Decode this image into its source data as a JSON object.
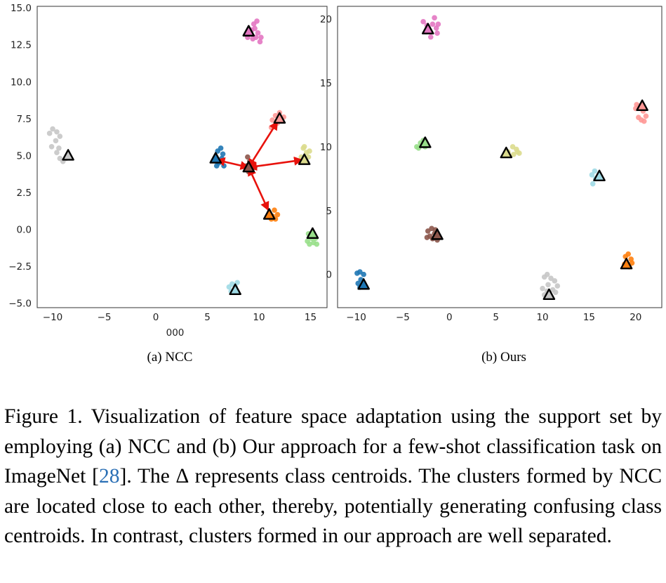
{
  "chart_data": [
    {
      "type": "scatter",
      "title": "",
      "xlabel": "000",
      "ylabel": "",
      "xlim": [
        -11.5,
        16.6
      ],
      "ylim": [
        -5.3,
        15.1
      ],
      "xticks": [
        -10,
        -5,
        0,
        5,
        10,
        15
      ],
      "xtick_labels": [
        "−10",
        "−5",
        "0",
        "5",
        "10",
        "15"
      ],
      "yticks": [
        -5,
        -2.5,
        0,
        2.5,
        5,
        7.5,
        10,
        12.5,
        15
      ],
      "ytick_labels": [
        "−5.0",
        "−2.5",
        "0.0",
        "2.5",
        "5.0",
        "7.5",
        "10.0",
        "12.5",
        "15.0"
      ],
      "grid": false,
      "caption_label": "(a) NCC",
      "clusters": [
        {
          "color": "#e377c2",
          "points": [
            [
              9.0,
              13.2
            ],
            [
              9.3,
              13.5
            ],
            [
              9.5,
              13.9
            ],
            [
              9.8,
              14.1
            ],
            [
              9.6,
              13.6
            ],
            [
              9.9,
              13.3
            ],
            [
              10.2,
              13.0
            ],
            [
              10.1,
              12.7
            ],
            [
              9.4,
              12.9
            ],
            [
              8.9,
              13.0
            ],
            [
              9.7,
              13.0
            ]
          ],
          "centroid": [
            9.0,
            13.4
          ]
        },
        {
          "color": "#c7c7c7",
          "points": [
            [
              -10.3,
              6.5
            ],
            [
              -10.0,
              6.8
            ],
            [
              -9.6,
              6.6
            ],
            [
              -9.3,
              6.3
            ],
            [
              -9.7,
              6.0
            ],
            [
              -10.1,
              5.6
            ],
            [
              -9.6,
              5.2
            ],
            [
              -9.3,
              4.8
            ],
            [
              -9.0,
              4.6
            ],
            [
              -8.7,
              4.8
            ],
            [
              -9.4,
              5.5
            ]
          ],
          "centroid": [
            -8.5,
            5.0
          ]
        },
        {
          "color": "#1f77b4",
          "points": [
            [
              5.8,
              4.9
            ],
            [
              6.0,
              5.3
            ],
            [
              6.3,
              5.5
            ],
            [
              6.4,
              4.8
            ],
            [
              6.1,
              4.5
            ],
            [
              6.6,
              4.3
            ],
            [
              5.9,
              4.3
            ],
            [
              6.5,
              5.1
            ]
          ],
          "centroid": [
            5.8,
            4.8
          ]
        },
        {
          "color": "#8c564b",
          "points": [
            [
              8.9,
              4.9
            ],
            [
              9.1,
              4.6
            ],
            [
              9.4,
              4.4
            ],
            [
              8.8,
              4.3
            ],
            [
              9.2,
              4.0
            ],
            [
              9.0,
              3.9
            ],
            [
              9.6,
              4.2
            ]
          ],
          "centroid": [
            9.0,
            4.2
          ]
        },
        {
          "color": "#ff9896",
          "points": [
            [
              11.3,
              7.4
            ],
            [
              11.6,
              7.7
            ],
            [
              12.0,
              7.9
            ],
            [
              12.2,
              7.5
            ],
            [
              11.8,
              7.2
            ],
            [
              11.5,
              7.0
            ],
            [
              11.2,
              6.9
            ],
            [
              12.4,
              7.6
            ]
          ],
          "centroid": [
            12.0,
            7.5
          ]
        },
        {
          "color": "#dbdb8d",
          "points": [
            [
              14.3,
              5.5
            ],
            [
              14.6,
              5.2
            ],
            [
              14.8,
              4.9
            ],
            [
              14.5,
              4.7
            ],
            [
              14.1,
              4.9
            ],
            [
              14.4,
              5.6
            ],
            [
              14.9,
              5.3
            ]
          ],
          "centroid": [
            14.4,
            4.7
          ]
        },
        {
          "color": "#ff7f0e",
          "points": [
            [
              11.0,
              1.1
            ],
            [
              11.3,
              0.9
            ],
            [
              11.6,
              0.7
            ],
            [
              11.8,
              1.0
            ],
            [
              11.5,
              1.3
            ],
            [
              11.2,
              0.7
            ]
          ],
          "centroid": [
            11.0,
            1.0
          ]
        },
        {
          "color": "#98df8a",
          "points": [
            [
              14.8,
              -0.3
            ],
            [
              15.1,
              -0.6
            ],
            [
              15.3,
              -0.9
            ],
            [
              14.9,
              -1.0
            ],
            [
              15.5,
              -0.6
            ],
            [
              14.7,
              -0.8
            ],
            [
              15.6,
              -1.0
            ]
          ],
          "centroid": [
            15.2,
            -0.3
          ]
        },
        {
          "color": "#9edae5",
          "points": [
            [
              7.1,
              -3.9
            ],
            [
              7.4,
              -3.7
            ],
            [
              7.7,
              -3.9
            ],
            [
              7.9,
              -3.6
            ],
            [
              7.3,
              -4.2
            ]
          ],
          "centroid": [
            7.7,
            -4.1
          ]
        }
      ],
      "arrows": [
        {
          "from": [
            9.0,
            4.2
          ],
          "to": [
            5.9,
            4.7
          ]
        },
        {
          "from": [
            9.0,
            4.2
          ],
          "to": [
            11.8,
            7.3
          ]
        },
        {
          "from": [
            9.0,
            4.2
          ],
          "to": [
            14.2,
            4.7
          ]
        },
        {
          "from": [
            9.0,
            4.2
          ],
          "to": [
            10.9,
            1.3
          ]
        }
      ]
    },
    {
      "type": "scatter",
      "title": "",
      "xlabel": "",
      "ylabel": "",
      "xlim": [
        -12.0,
        22.8
      ],
      "ylim": [
        -2.6,
        21.0
      ],
      "xticks": [
        -10,
        -5,
        0,
        5,
        10,
        15,
        20
      ],
      "xtick_labels": [
        "−10",
        "−5",
        "0",
        "5",
        "10",
        "15",
        "20"
      ],
      "yticks": [
        0,
        5,
        10,
        15,
        20
      ],
      "ytick_labels": [
        "0",
        "5",
        "10",
        "15",
        "20"
      ],
      "grid": false,
      "caption_label": "(b) Ours",
      "clusters": [
        {
          "color": "#e377c2",
          "points": [
            [
              -2.8,
              19.8
            ],
            [
              -2.4,
              19.5
            ],
            [
              -1.8,
              19.6
            ],
            [
              -1.4,
              19.3
            ],
            [
              -1.3,
              18.9
            ],
            [
              -2.0,
              18.6
            ],
            [
              -2.5,
              19.0
            ],
            [
              -1.6,
              20.1
            ],
            [
              -2.2,
              19.2
            ],
            [
              -1.2,
              19.6
            ]
          ],
          "centroid": [
            -2.3,
            19.2
          ]
        },
        {
          "color": "#ff9896",
          "points": [
            [
              20.0,
              13.0
            ],
            [
              20.4,
              13.2
            ],
            [
              20.8,
              12.8
            ],
            [
              21.1,
              12.4
            ],
            [
              20.6,
              12.1
            ],
            [
              20.9,
              12.0
            ],
            [
              20.3,
              12.3
            ],
            [
              20.1,
              13.3
            ]
          ],
          "centroid": [
            20.7,
            13.2
          ]
        },
        {
          "color": "#98df8a",
          "points": [
            [
              -3.5,
              10.0
            ],
            [
              -3.1,
              10.3
            ],
            [
              -2.8,
              10.5
            ],
            [
              -3.3,
              9.9
            ],
            [
              -2.6,
              10.0
            ]
          ],
          "centroid": [
            -2.6,
            10.3
          ]
        },
        {
          "color": "#dbdb8d",
          "points": [
            [
              6.3,
              9.6
            ],
            [
              6.8,
              10.0
            ],
            [
              7.2,
              9.8
            ],
            [
              7.5,
              9.5
            ],
            [
              6.9,
              9.4
            ],
            [
              7.3,
              9.6
            ]
          ],
          "centroid": [
            6.1,
            9.5
          ]
        },
        {
          "color": "#9edae5",
          "points": [
            [
              15.3,
              7.8
            ],
            [
              15.6,
              8.1
            ],
            [
              15.9,
              7.6
            ],
            [
              15.4,
              7.1
            ],
            [
              15.7,
              7.5
            ]
          ],
          "centroid": [
            16.1,
            7.7
          ]
        },
        {
          "color": "#8c564b",
          "points": [
            [
              -2.3,
              3.4
            ],
            [
              -1.9,
              3.6
            ],
            [
              -1.6,
              3.2
            ],
            [
              -1.8,
              2.8
            ],
            [
              -1.3,
              2.7
            ],
            [
              -2.1,
              3.0
            ],
            [
              -1.5,
              3.5
            ],
            [
              -2.4,
              2.9
            ]
          ],
          "centroid": [
            -1.3,
            3.1
          ]
        },
        {
          "color": "#ff7f0e",
          "points": [
            [
              18.9,
              1.4
            ],
            [
              19.2,
              1.6
            ],
            [
              19.5,
              1.2
            ],
            [
              19.3,
              0.6
            ],
            [
              19.6,
              0.9
            ],
            [
              18.8,
              0.8
            ]
          ],
          "centroid": [
            19.0,
            0.8
          ]
        },
        {
          "color": "#1f77b4",
          "points": [
            [
              -9.9,
              0.1
            ],
            [
              -9.6,
              0.2
            ],
            [
              -9.2,
              0.0
            ],
            [
              -9.5,
              -0.4
            ],
            [
              -9.8,
              -0.7
            ],
            [
              -9.2,
              -0.8
            ],
            [
              -9.6,
              -1.0
            ]
          ],
          "centroid": [
            -9.2,
            -0.8
          ]
        },
        {
          "color": "#c7c7c7",
          "points": [
            [
              10.2,
              -0.2
            ],
            [
              10.5,
              0.0
            ],
            [
              10.9,
              -0.3
            ],
            [
              11.3,
              -0.5
            ],
            [
              11.6,
              -0.9
            ],
            [
              11.1,
              -1.2
            ],
            [
              10.5,
              -1.3
            ],
            [
              10.0,
              -1.1
            ],
            [
              10.2,
              -1.6
            ],
            [
              10.8,
              -1.7
            ],
            [
              11.4,
              -1.4
            ],
            [
              10.6,
              -0.8
            ]
          ],
          "centroid": [
            10.7,
            -1.6
          ]
        }
      ],
      "arrows": []
    }
  ],
  "caption": {
    "prefix": "Figure 1. Visualization of feature space adaptation using the support set by employing (a) NCC and (b) Our approach for a few-shot classification task on ImageNet [",
    "ref": "28",
    "suffix": "]. The ∆ represents class centroids. The clusters formed by NCC are located close to each other, thereby, potentially generating confusing class centroids. In contrast, clusters formed in our approach are well separated."
  }
}
